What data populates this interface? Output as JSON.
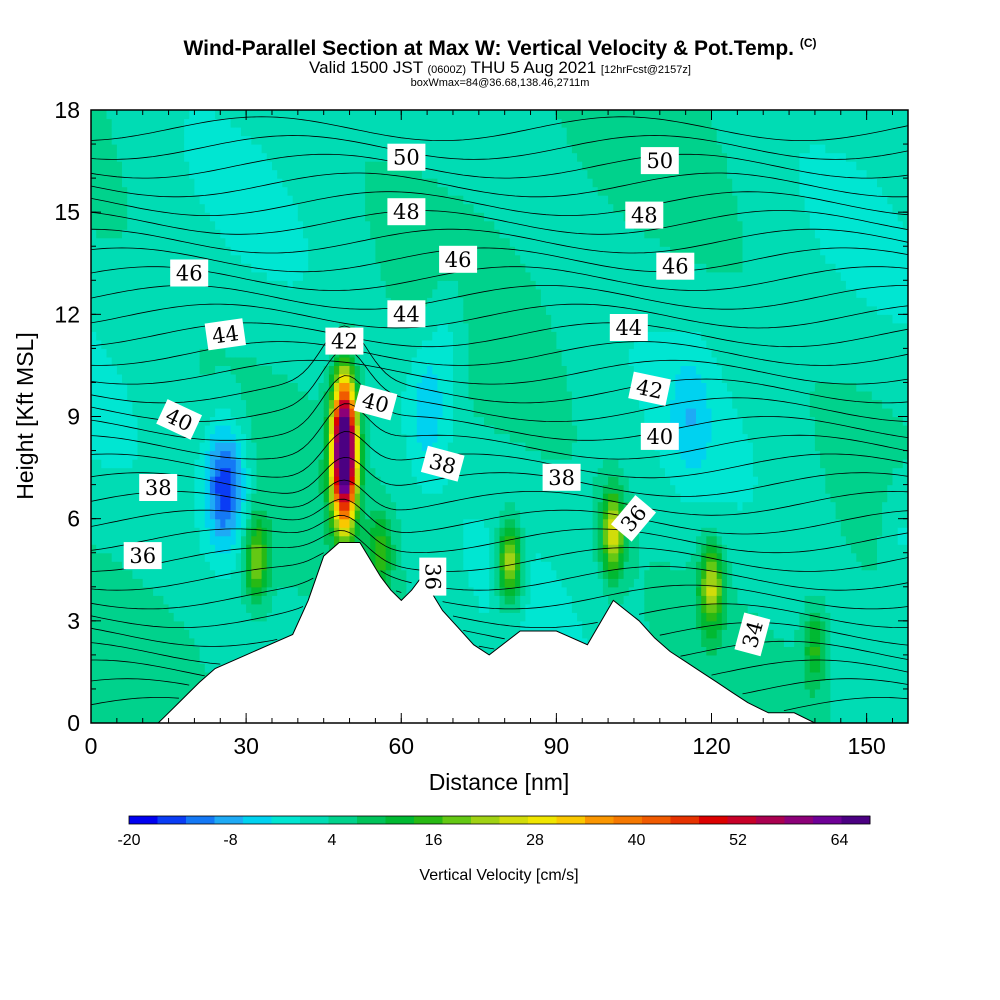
{
  "title": {
    "main": "Wind-Parallel Section at Max W: Vertical Velocity & Pot.Temp.",
    "copyright": "(C)",
    "valid_prefix": "Valid 1500 JST",
    "valid_utc": "(0600Z)",
    "valid_date": "THU 5 Aug 2021",
    "forecast_info": "[12hrFcst@2157z]",
    "box_info": "boxWmax=84@36.68,138.46,2711m"
  },
  "chart_data": {
    "type": "heatmap",
    "xlabel": "Distance [nm]",
    "ylabel": "Height [Kft MSL]",
    "xlim": [
      0,
      158
    ],
    "ylim": [
      0,
      18
    ],
    "x_ticks": [
      "0",
      "30",
      "60",
      "90",
      "120",
      "150"
    ],
    "y_ticks": [
      "0",
      "3",
      "6",
      "9",
      "12",
      "15",
      "18"
    ],
    "colorbar": {
      "label": "Vertical Velocity [cm/s]",
      "tick_labels": [
        "-20",
        "-8",
        "4",
        "16",
        "28",
        "40",
        "52",
        "64"
      ],
      "colors": [
        "#0000f0",
        "#0a3cf5",
        "#1478f5",
        "#1eaaf5",
        "#00d2f0",
        "#00e6d2",
        "#00dcb4",
        "#00d28c",
        "#00c35a",
        "#00b932",
        "#28b914",
        "#64c814",
        "#a0d214",
        "#d2dc0a",
        "#f0e600",
        "#fac800",
        "#fa9600",
        "#f57800",
        "#f05a00",
        "#e63200",
        "#dc0000",
        "#c80028",
        "#aa0050",
        "#8c0078",
        "#6e0096",
        "#4b0082"
      ]
    },
    "terrain_profile": {
      "x": [
        0,
        13,
        15,
        17,
        19,
        21,
        24,
        30,
        39,
        42,
        45,
        48,
        52,
        56,
        58,
        60,
        62,
        64,
        68,
        71,
        74,
        77,
        83,
        90,
        96,
        101,
        106,
        109,
        112,
        115,
        118,
        121,
        124,
        127,
        131,
        136,
        140,
        158
      ],
      "height": [
        0,
        0,
        0.3,
        0.6,
        0.9,
        1.2,
        1.6,
        2.0,
        2.6,
        3.6,
        4.9,
        5.3,
        5.3,
        4.3,
        3.9,
        3.6,
        3.9,
        4.3,
        3.3,
        2.8,
        2.3,
        2.0,
        2.7,
        2.7,
        2.3,
        3.6,
        3.0,
        2.5,
        2.1,
        1.8,
        1.5,
        1.2,
        0.9,
        0.6,
        0.3,
        0.3,
        0,
        0
      ]
    },
    "updraft_cells": [
      {
        "x": 49,
        "z": 8.0,
        "peak": 84
      },
      {
        "x": 32,
        "z": 4.8,
        "peak": 18
      },
      {
        "x": 56,
        "z": 5.0,
        "peak": 12
      },
      {
        "x": 81,
        "z": 4.7,
        "peak": 24
      },
      {
        "x": 101,
        "z": 5.6,
        "peak": 24
      },
      {
        "x": 120,
        "z": 4.0,
        "peak": 22
      },
      {
        "x": 140,
        "z": 2.2,
        "peak": 12
      }
    ],
    "downdraft_cells": [
      {
        "x": 26,
        "z": 7.0,
        "peak": -20
      },
      {
        "x": 65,
        "z": 9.3,
        "peak": -8
      },
      {
        "x": 69,
        "z": 11.5,
        "peak": -5
      },
      {
        "x": 116,
        "z": 9.0,
        "peak": -6
      },
      {
        "x": 157,
        "z": 5.6,
        "peak": -6
      }
    ],
    "theta_contours": [
      {
        "value": "34",
        "x": 128,
        "z": 2.6,
        "rot": -75
      },
      {
        "value": "36",
        "x": 10,
        "z": 4.9,
        "rot": 0
      },
      {
        "value": "36",
        "x": 66,
        "z": 4.3,
        "rot": 90
      },
      {
        "value": "36",
        "x": 105,
        "z": 6.0,
        "rot": -50
      },
      {
        "value": "38",
        "x": 13,
        "z": 6.9,
        "rot": 0
      },
      {
        "value": "38",
        "x": 68,
        "z": 7.6,
        "rot": 15
      },
      {
        "value": "38",
        "x": 91,
        "z": 7.2,
        "rot": 0
      },
      {
        "value": "40",
        "x": 17,
        "z": 8.9,
        "rot": 25
      },
      {
        "value": "40",
        "x": 55,
        "z": 9.4,
        "rot": 15
      },
      {
        "value": "40",
        "x": 110,
        "z": 8.4,
        "rot": 0
      },
      {
        "value": "42",
        "x": 49,
        "z": 11.2,
        "rot": 0
      },
      {
        "value": "42",
        "x": 108,
        "z": 9.8,
        "rot": 12
      },
      {
        "value": "44",
        "x": 26,
        "z": 11.4,
        "rot": -8
      },
      {
        "value": "44",
        "x": 61,
        "z": 12.0,
        "rot": 0
      },
      {
        "value": "44",
        "x": 104,
        "z": 11.6,
        "rot": 0
      },
      {
        "value": "46",
        "x": 19,
        "z": 13.2,
        "rot": 0
      },
      {
        "value": "46",
        "x": 71,
        "z": 13.6,
        "rot": 0
      },
      {
        "value": "46",
        "x": 113,
        "z": 13.4,
        "rot": 0
      },
      {
        "value": "48",
        "x": 61,
        "z": 15.0,
        "rot": 0
      },
      {
        "value": "48",
        "x": 107,
        "z": 14.9,
        "rot": 0
      },
      {
        "value": "50",
        "x": 61,
        "z": 16.6,
        "rot": 0
      },
      {
        "value": "50",
        "x": 110,
        "z": 16.5,
        "rot": 0
      }
    ]
  }
}
